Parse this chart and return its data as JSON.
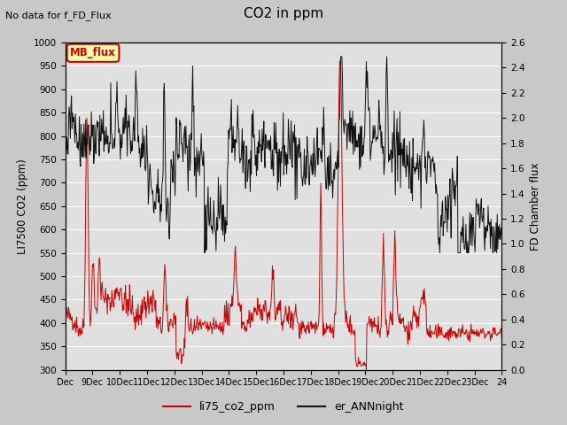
{
  "title": "CO2 in ppm",
  "top_left_text": "No data for f_FD_Flux",
  "ylabel_left": "LI7500 CO2 (ppm)",
  "ylabel_right": "FD Chamber flux",
  "ylim_left": [
    300,
    1000
  ],
  "ylim_right": [
    0.0,
    2.6
  ],
  "yticks_left": [
    300,
    350,
    400,
    450,
    500,
    550,
    600,
    650,
    700,
    750,
    800,
    850,
    900,
    950,
    1000
  ],
  "yticks_right": [
    0.0,
    0.2,
    0.4,
    0.6,
    0.8,
    1.0,
    1.2,
    1.4,
    1.6,
    1.8,
    2.0,
    2.2,
    2.4,
    2.6
  ],
  "xlabel_ticks": [
    "Dec",
    "9Dec",
    "10Dec",
    "11Dec",
    "12Dec",
    "13Dec",
    "14Dec",
    "15Dec",
    "16Dec",
    "17Dec",
    "18Dec",
    "19Dec",
    "20Dec",
    "21Dec",
    "22Dec",
    "23Dec",
    "24"
  ],
  "fig_bg_color": "#c8c8c8",
  "plot_bg_color": "#e0e0e0",
  "legend_items": [
    "li75_co2_ppm",
    "er_ANNnight"
  ],
  "legend_colors": [
    "#cc0000",
    "#111111"
  ],
  "box_label": "MB_flux",
  "box_color": "#ffffaa",
  "box_edge_color": "#cc0000",
  "grid_color": "#f0f0f0"
}
